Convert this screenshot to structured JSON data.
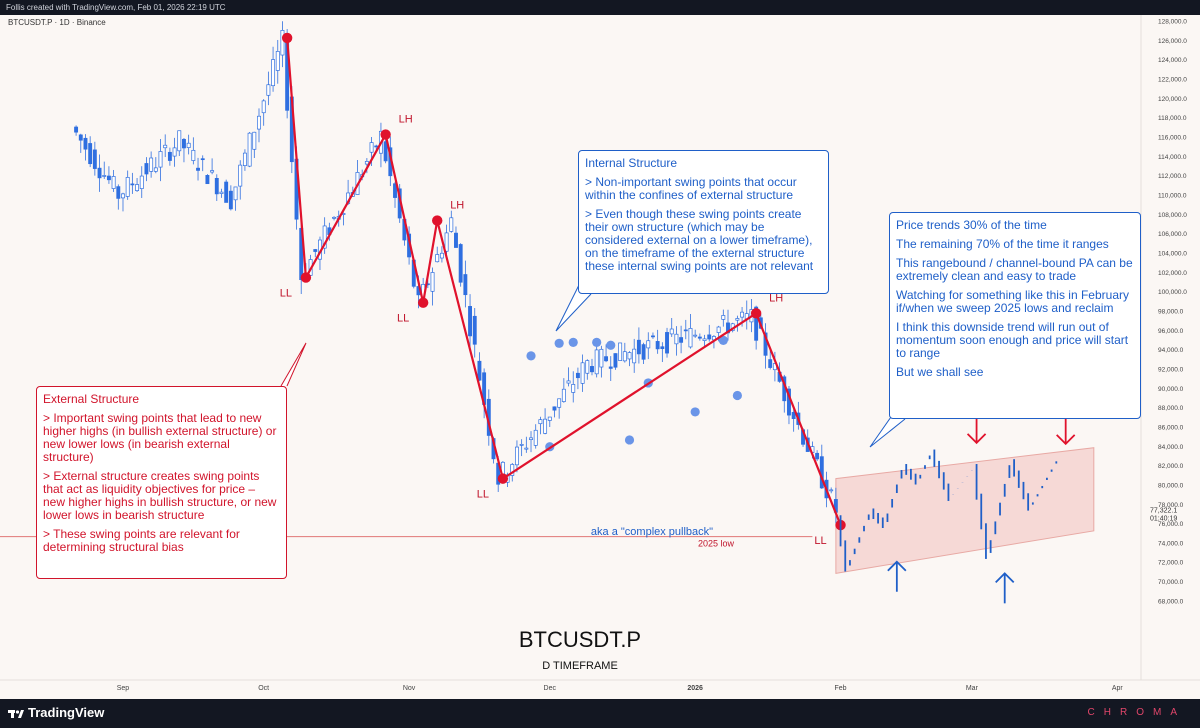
{
  "header": {
    "text": "Follis created with TradingView.com, Feb 01, 2026 22:19 UTC"
  },
  "symbol_label": "BTCUSDT.P · 1D · Binance",
  "center_title": "BTCUSDT.P",
  "center_subtitle": "D TIMEFRAME",
  "footer": {
    "brand": "TradingView",
    "chroma": "CHROMA"
  },
  "colors": {
    "candle": "#2f6fe0",
    "swing": "#e0122c",
    "internal": "#6a95e8",
    "channel": "#f3c9c6",
    "background": "#fbf7f4"
  },
  "external_box": {
    "title": "External Structure",
    "lines": [
      "> Important swing points that lead to new higher highs (in bullish external structure) or new lower lows (in bearish external structure)",
      "> External structure creates swing points that act as liquidity objectives for price – new higher highs in bullish structure, or new lower lows in bearish structure",
      "> These swing points are relevant for determining structural bias"
    ]
  },
  "internal_box": {
    "title": "Internal Structure",
    "lines": [
      "> Non-important swing points that occur within the confines of external structure",
      "> Even though these swing points create their own structure (which may be considered external on a lower timeframe), on the timeframe of the external structure these internal swing points are not relevant"
    ]
  },
  "range_box": {
    "lines": [
      "Price trends 30% of the time",
      "The remaining 70% of the time it ranges",
      "This rangebound / channel-bound PA can be extremely clean and easy to trade",
      "Watching for something like this in February if/when we sweep 2025 lows and reclaim",
      "I think this downside trend will run out of momentum soon enough and price will start to range",
      "But we shall see"
    ]
  },
  "complex_pullback_label": "aka a \"complex pullback\"",
  "chart_data": {
    "type": "candlestick",
    "title": "BTCUSDT.P",
    "subtitle": "D TIMEFRAME",
    "x_ticks": [
      "Sep",
      "Oct",
      "Nov",
      "Dec",
      "2026",
      "Feb",
      "Mar",
      "Apr"
    ],
    "y_ticks": [
      "128,000.0",
      "126,000.0",
      "124,000.0",
      "122,000.0",
      "120,000.0",
      "118,000.0",
      "116,000.0",
      "114,000.0",
      "112,000.0",
      "110,000.0",
      "108,000.0",
      "106,000.0",
      "104,000.0",
      "102,000.0",
      "100,000.0",
      "98,000.0",
      "96,000.0",
      "94,000.0",
      "92,000.0",
      "90,000.0",
      "88,000.0",
      "86,000.0",
      "84,000.0",
      "82,000.0",
      "80,000.0",
      "78,000.0",
      "76,000.0",
      "74,000.0",
      "72,000.0",
      "70,000.0",
      "68,000.0"
    ],
    "ylim": [
      66900,
      128500
    ],
    "last_price": {
      "value": 77322.1,
      "label": "77,322.1",
      "countdown": "01:40:19"
    },
    "price_series": [
      {
        "date": "2025-08-22",
        "close": 117000
      },
      {
        "date": "2025-09-01",
        "close": 110000
      },
      {
        "date": "2025-09-14",
        "close": 115500
      },
      {
        "date": "2025-09-25",
        "close": 109500
      },
      {
        "date": "2025-10-06",
        "close": 125800
      },
      {
        "date": "2025-10-10",
        "close": 101500
      },
      {
        "date": "2025-10-27",
        "close": 116000
      },
      {
        "date": "2025-11-04",
        "close": 98600
      },
      {
        "date": "2025-11-11",
        "close": 107200
      },
      {
        "date": "2025-11-21",
        "close": 80600
      },
      {
        "date": "2025-12-10",
        "close": 92500
      },
      {
        "date": "2026-01-14",
        "close": 97200
      },
      {
        "date": "2026-02-01",
        "close": 77322
      }
    ],
    "external_swings": [
      {
        "date": "2025-10-06",
        "price": 126200,
        "label": ""
      },
      {
        "date": "2025-10-10",
        "price": 101400,
        "label": "LL"
      },
      {
        "date": "2025-10-27",
        "price": 116200,
        "label": "LH"
      },
      {
        "date": "2025-11-04",
        "price": 98800,
        "label": "LL"
      },
      {
        "date": "2025-11-07",
        "price": 107300,
        "label": "LH"
      },
      {
        "date": "2025-11-21",
        "price": 80600,
        "label": "LL"
      },
      {
        "date": "2026-01-14",
        "price": 97700,
        "label": "LH"
      },
      {
        "date": "2026-02-01",
        "price": 75800,
        "label": "LL"
      }
    ],
    "internal_swings": [
      {
        "date": "2025-11-27",
        "price": 93300
      },
      {
        "date": "2025-12-01",
        "price": 83900
      },
      {
        "date": "2025-12-03",
        "price": 94600
      },
      {
        "date": "2025-12-06",
        "price": 94700
      },
      {
        "date": "2025-12-11",
        "price": 94700
      },
      {
        "date": "2025-12-14",
        "price": 94400
      },
      {
        "date": "2025-12-18",
        "price": 84600
      },
      {
        "date": "2025-12-22",
        "price": 90500
      },
      {
        "date": "2026-01-01",
        "price": 87500
      },
      {
        "date": "2026-01-07",
        "price": 94900
      },
      {
        "date": "2026-01-10",
        "price": 89200
      }
    ],
    "low_2025": {
      "price": 74600,
      "label": "2025 low"
    },
    "projection": {
      "channel": {
        "start": "2026-01-31",
        "end": "2026-03-27",
        "lower": [
          70800,
          75200
        ],
        "upper": [
          80600,
          83800
        ]
      },
      "swings": [
        {
          "date": "2026-02-01",
          "price": 76500
        },
        {
          "date": "2026-02-03",
          "price": 71300
        },
        {
          "date": "2026-02-08",
          "price": 77200
        },
        {
          "date": "2026-02-11",
          "price": 75800
        },
        {
          "date": "2026-02-15",
          "price": 81800
        },
        {
          "date": "2026-02-18",
          "price": 80300
        },
        {
          "date": "2026-02-21",
          "price": 83300
        },
        {
          "date": "2026-02-25",
          "price": 78600
        },
        {
          "date": "2026-03-02",
          "price": 81800
        },
        {
          "date": "2026-03-05",
          "price": 72600
        },
        {
          "date": "2026-03-10",
          "price": 82300
        },
        {
          "date": "2026-03-14",
          "price": 77600
        },
        {
          "date": "2026-03-20",
          "price": 82700
        }
      ],
      "arrows_down": [
        {
          "date": "2026-03-02",
          "price": 84300
        },
        {
          "date": "2026-03-21",
          "price": 84200
        }
      ],
      "arrows_up": [
        {
          "date": "2026-02-13",
          "price": 72000
        },
        {
          "date": "2026-03-08",
          "price": 70800
        }
      ]
    }
  }
}
